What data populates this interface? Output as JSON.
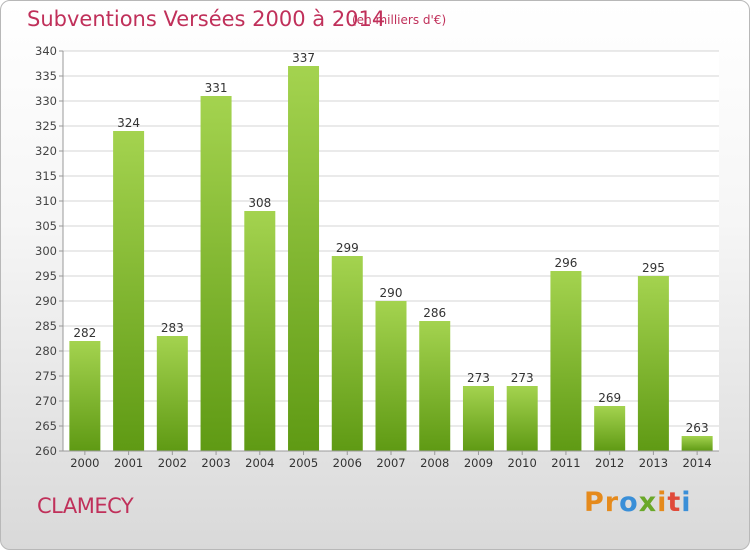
{
  "title": "Subventions Versées 2000 à 2014",
  "unit": "(en milliers d'€)",
  "city": "CLAMECY",
  "logo": {
    "letters": [
      "P",
      "r",
      "o",
      "x",
      "i",
      "t",
      "i"
    ],
    "colors": [
      "#e58a1c",
      "#e58a1c",
      "#3a8fd8",
      "#6aa829",
      "#e58a1c",
      "#e04a3a",
      "#3a8fd8"
    ]
  },
  "colors": {
    "title": "#c0305a",
    "bar_top": "#a4d34f",
    "bar_bottom": "#5f9a14",
    "grid": "#d4d4d4"
  },
  "chart_data": {
    "type": "bar",
    "title": "Subventions Versées 2000 à 2014",
    "subtitle": "(en milliers d'€)",
    "categories": [
      "2000",
      "2001",
      "2002",
      "2003",
      "2004",
      "2005",
      "2006",
      "2007",
      "2008",
      "2009",
      "2010",
      "2011",
      "2012",
      "2013",
      "2014"
    ],
    "values": [
      282,
      324,
      283,
      331,
      308,
      337,
      299,
      290,
      286,
      273,
      273,
      296,
      269,
      295,
      263
    ],
    "ylim": [
      260,
      340
    ],
    "yticks": [
      260,
      265,
      270,
      275,
      280,
      285,
      290,
      295,
      300,
      305,
      310,
      315,
      320,
      325,
      330,
      335,
      340
    ],
    "grid": true,
    "data_labels": true
  }
}
